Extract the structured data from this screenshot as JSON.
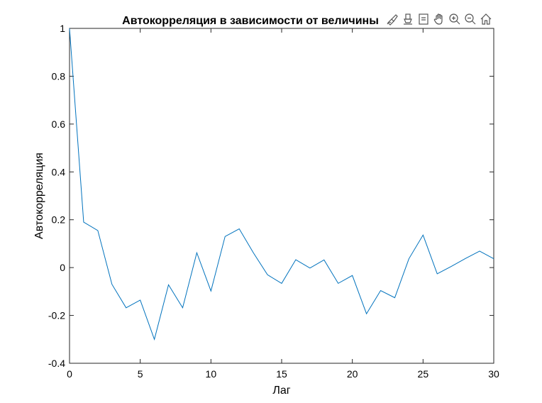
{
  "chart_data": {
    "type": "line",
    "title": "Автокорреляция в зависимости от величины",
    "xlabel": "Лаг",
    "ylabel": "Автокорреляция",
    "xlim": [
      0,
      30
    ],
    "ylim": [
      -0.4,
      1
    ],
    "xticks": [
      0,
      5,
      10,
      15,
      20,
      25,
      30
    ],
    "yticks": [
      -0.4,
      -0.2,
      0,
      0.2,
      0.4,
      0.6,
      0.8,
      1
    ],
    "xtick_labels": [
      "0",
      "5",
      "10",
      "15",
      "20",
      "25",
      "30"
    ],
    "ytick_labels": [
      "-0.4",
      "-0.2",
      "0",
      "0.2",
      "0.4",
      "0.6",
      "0.8",
      "1"
    ],
    "grid": false,
    "color": "#0072BD",
    "series": [
      {
        "x": [
          0,
          1,
          2,
          3,
          4,
          5,
          6,
          7,
          8,
          9,
          10,
          11,
          12,
          13,
          14,
          15,
          16,
          17,
          18,
          19,
          20,
          21,
          22,
          23,
          24,
          25,
          26,
          27,
          28,
          29,
          30
        ],
        "y": [
          1.0,
          0.19,
          0.155,
          -0.07,
          -0.168,
          -0.136,
          -0.3,
          -0.072,
          -0.168,
          0.062,
          -0.098,
          0.13,
          0.162,
          0.062,
          -0.03,
          -0.066,
          0.033,
          -0.002,
          0.032,
          -0.066,
          -0.033,
          -0.193,
          -0.096,
          -0.126,
          0.037,
          0.136,
          -0.026,
          0.005,
          0.038,
          0.069,
          0.037
        ]
      }
    ]
  },
  "toolbar": {
    "icons": [
      "brush-icon",
      "data-tip-icon",
      "legend-icon",
      "pan-icon",
      "zoom-in-icon",
      "zoom-out-icon",
      "home-icon"
    ]
  }
}
